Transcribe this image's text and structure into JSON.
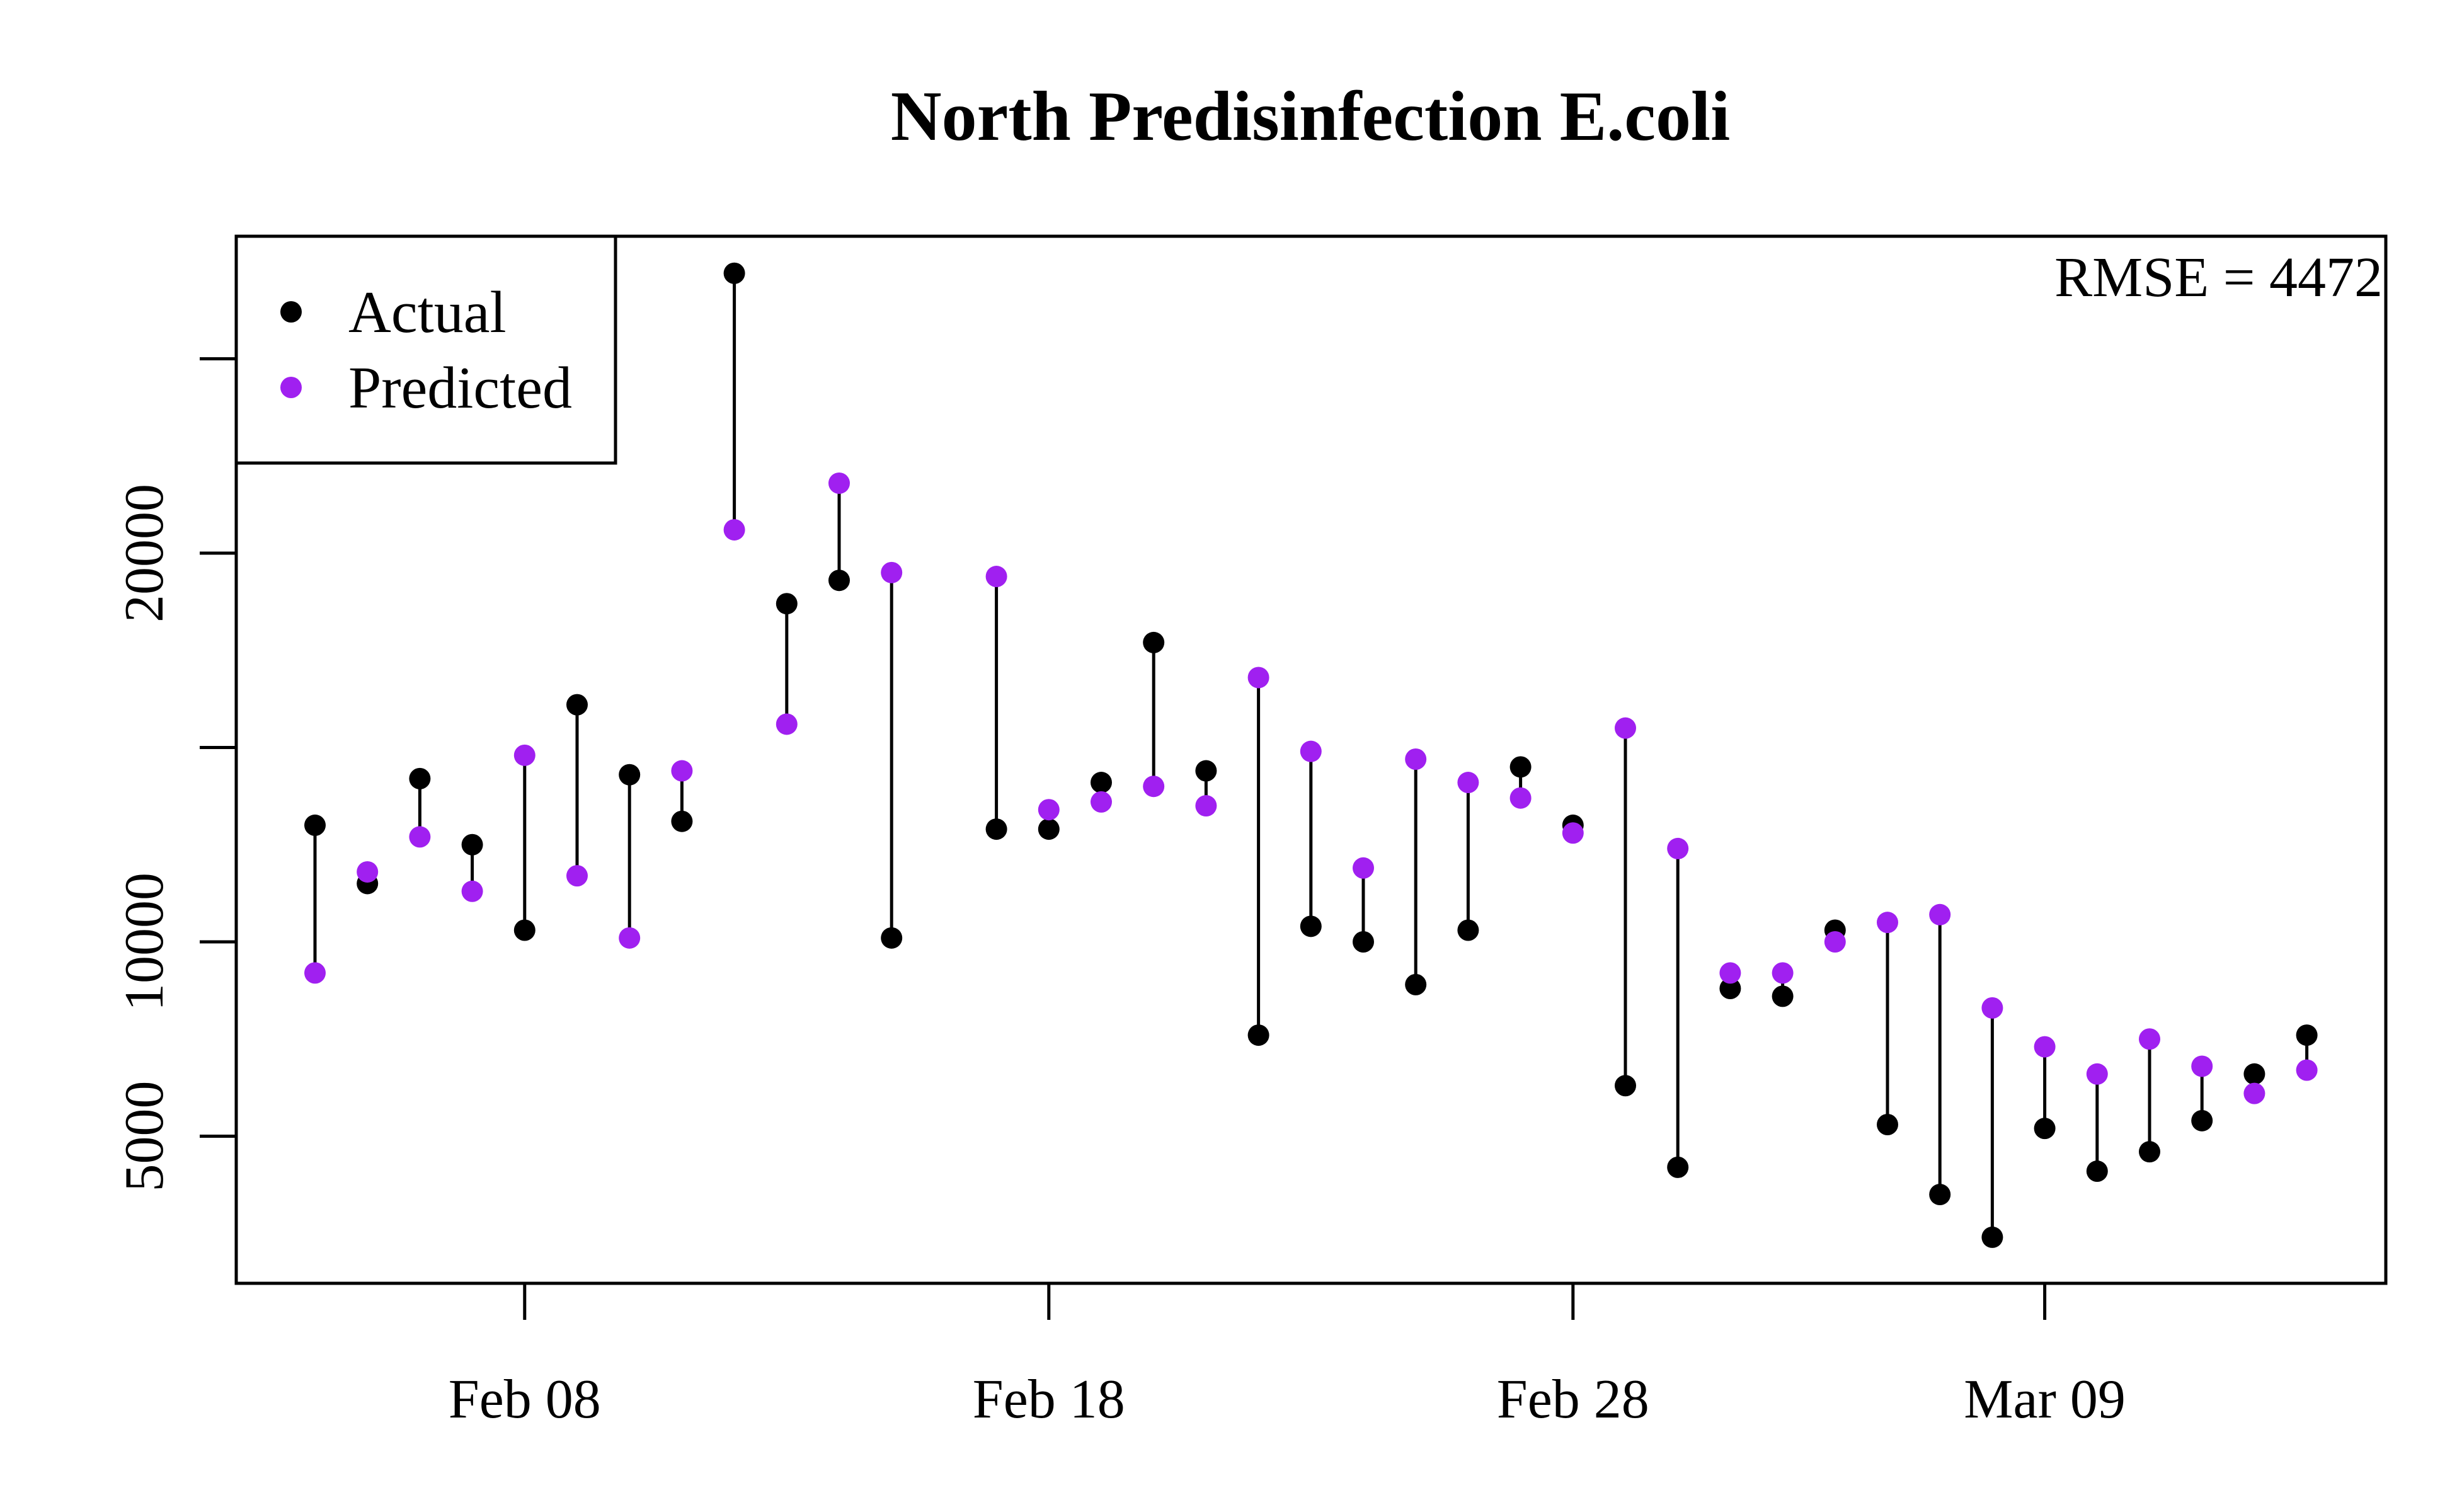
{
  "chart_data": {
    "type": "scatter",
    "title": "North Predisinfection E.coli",
    "xlabel": "",
    "ylabel": "",
    "annotation": "RMSE = 4472",
    "legend_position": "top-left",
    "x_ticks": [
      "Feb 08",
      "Feb 18",
      "Feb 28",
      "Mar 09"
    ],
    "y_ticks": [
      5000,
      10000,
      20000
    ],
    "ylim": [
      1200,
      28200
    ],
    "grid": false,
    "colors": {
      "actual": "#000000",
      "predicted": "#A020F0",
      "segment": "#000000"
    },
    "series": [
      {
        "name": "Actual",
        "x": [
          "2025-02-04",
          "2025-02-05",
          "2025-02-06",
          "2025-02-07",
          "2025-02-08",
          "2025-02-09",
          "2025-02-10",
          "2025-02-11",
          "2025-02-12",
          "2025-02-13",
          "2025-02-14",
          "2025-02-15",
          "2025-02-17",
          "2025-02-18",
          "2025-02-19",
          "2025-02-20",
          "2025-02-21",
          "2025-02-22",
          "2025-02-23",
          "2025-02-24",
          "2025-02-25",
          "2025-02-26",
          "2025-02-27",
          "2025-02-28",
          "2025-03-01",
          "2025-03-02",
          "2025-03-03",
          "2025-03-04",
          "2025-03-05",
          "2025-03-06",
          "2025-03-07",
          "2025-03-08",
          "2025-03-09",
          "2025-03-10",
          "2025-03-11",
          "2025-03-12",
          "2025-03-13",
          "2025-03-14"
        ],
        "values": [
          13000,
          11500,
          14200,
          12500,
          10300,
          16100,
          14300,
          13100,
          27200,
          18700,
          19300,
          10100,
          12900,
          12900,
          14100,
          17700,
          14400,
          7600,
          10400,
          10000,
          8900,
          10300,
          14500,
          13000,
          6300,
          4200,
          8800,
          8600,
          10300,
          5300,
          3500,
          2400,
          5200,
          4100,
          4600,
          5400,
          6600,
          7600
        ]
      },
      {
        "name": "Predicted",
        "x": [
          "2025-02-04",
          "2025-02-05",
          "2025-02-06",
          "2025-02-07",
          "2025-02-08",
          "2025-02-09",
          "2025-02-10",
          "2025-02-11",
          "2025-02-12",
          "2025-02-13",
          "2025-02-14",
          "2025-02-15",
          "2025-02-17",
          "2025-02-18",
          "2025-02-19",
          "2025-02-20",
          "2025-02-21",
          "2025-02-22",
          "2025-02-23",
          "2025-02-24",
          "2025-02-25",
          "2025-02-26",
          "2025-02-27",
          "2025-02-28",
          "2025-03-01",
          "2025-03-02",
          "2025-03-03",
          "2025-03-04",
          "2025-03-05",
          "2025-03-06",
          "2025-03-07",
          "2025-03-08",
          "2025-03-09",
          "2025-03-10",
          "2025-03-11",
          "2025-03-12",
          "2025-03-13",
          "2025-03-14"
        ],
        "values": [
          9200,
          11800,
          12700,
          11300,
          14800,
          11700,
          10100,
          14400,
          20600,
          15600,
          21800,
          19500,
          19400,
          13400,
          13600,
          14000,
          13500,
          16800,
          14900,
          11900,
          14700,
          14100,
          13700,
          12800,
          15500,
          12400,
          9200,
          9200,
          10000,
          10500,
          10700,
          8300,
          7300,
          6600,
          7500,
          6800,
          6100,
          6700
        ]
      }
    ]
  }
}
